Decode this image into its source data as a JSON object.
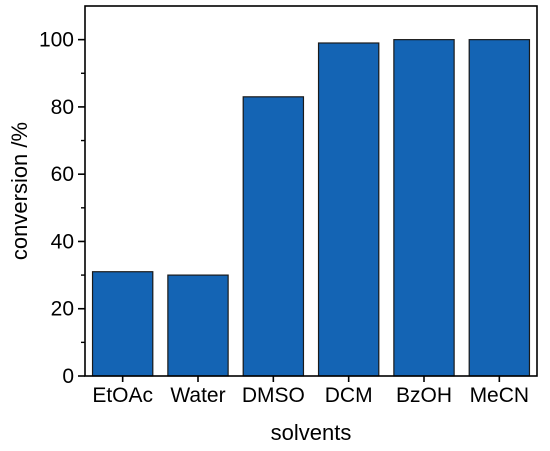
{
  "chart_data": {
    "type": "bar",
    "title": "",
    "xlabel": "solvents",
    "ylabel": "conversion /%",
    "categories": [
      "EtOAc",
      "Water",
      "DMSO",
      "DCM",
      "BzOH",
      "MeCN"
    ],
    "values": [
      31,
      30,
      83,
      99,
      100,
      100
    ],
    "ylim": [
      0,
      110
    ],
    "yticks": [
      0,
      20,
      40,
      60,
      80,
      100
    ],
    "ytick_labels": [
      "0",
      "20",
      "40",
      "60",
      "80",
      "100"
    ],
    "yminor_ticks": [
      10,
      30,
      50,
      70,
      90
    ],
    "grid": false,
    "legend": "none",
    "bar_color": "#1464b4",
    "bar_edge_color": "#1a1a1a"
  }
}
